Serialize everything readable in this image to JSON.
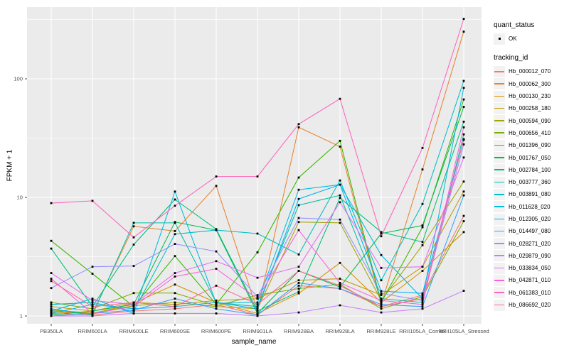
{
  "chart_data": {
    "type": "line",
    "title": "",
    "xlabel": "sample_name",
    "ylabel": "FPKM + 1",
    "y_scale": "log10",
    "y_ticks": [
      1,
      10,
      100
    ],
    "y_minor_ticks": [
      3.16,
      31.6,
      316
    ],
    "ylim": [
      0.95,
      400
    ],
    "grid": true,
    "legend_position": "right",
    "marker": "small-black-square",
    "panel_background": "#EBEBEB",
    "gridline_color": "#FFFFFF",
    "axis_text_color": "#4D4D4D",
    "point_color": "#000000",
    "categories": [
      "PB350LA",
      "RRIM600LA",
      "RRIM600LE",
      "RRIM600SE",
      "RRIM600PE",
      "RRIM901LA",
      "RRIM928BA",
      "RRIM928LA",
      "RRIM928LE",
      "RRII105LA_Control",
      "RRII105LA_Stressed"
    ],
    "legend": {
      "quant_status_title": "quant_status",
      "quant_status_items": [
        "OK"
      ],
      "tracking_id_title": "tracking_id"
    },
    "series": [
      {
        "name": "Hb_000012_070",
        "color": "#F8766D",
        "values": [
          1.05,
          1.02,
          1.1,
          1.15,
          1.25,
          1.02,
          1.8,
          1.7,
          1.2,
          1.5,
          6.98
        ]
      },
      {
        "name": "Hb_000062_300",
        "color": "#EA8331",
        "values": [
          1.1,
          1.05,
          5.7,
          5.2,
          12.5,
          1.1,
          39.0,
          26.8,
          1.25,
          17.2,
          250
        ]
      },
      {
        "name": "Hb_000130_230",
        "color": "#D89000",
        "values": [
          1.08,
          1.04,
          1.28,
          1.84,
          1.3,
          1.05,
          1.55,
          2.8,
          1.3,
          2.4,
          5.1
        ]
      },
      {
        "name": "Hb_000258_180",
        "color": "#C09B00",
        "values": [
          1.2,
          1.1,
          1.3,
          1.25,
          1.35,
          1.4,
          2.0,
          2.06,
          1.5,
          2.6,
          11.2
        ]
      },
      {
        "name": "Hb_000594_090",
        "color": "#A3A500",
        "values": [
          1.12,
          1.06,
          1.22,
          1.3,
          1.2,
          1.15,
          6.2,
          6.1,
          1.35,
          3.95,
          13.6
        ]
      },
      {
        "name": "Hb_000656_410",
        "color": "#7CAE00",
        "values": [
          1.3,
          1.15,
          1.56,
          1.56,
          1.22,
          1.5,
          1.7,
          1.85,
          1.15,
          1.45,
          6.3
        ]
      },
      {
        "name": "Hb_001396_090",
        "color": "#39B600",
        "values": [
          4.3,
          2.27,
          1.2,
          3.2,
          1.25,
          3.44,
          14.7,
          30.0,
          1.3,
          5.6,
          67.0
        ]
      },
      {
        "name": "Hb_001767_050",
        "color": "#00BB4E",
        "values": [
          1.02,
          1.1,
          1.25,
          6.2,
          5.3,
          1.05,
          2.4,
          1.75,
          4.95,
          5.8,
          58.0
        ]
      },
      {
        "name": "Hb_002784_100",
        "color": "#00BF7D",
        "values": [
          3.7,
          1.2,
          4.0,
          9.6,
          5.4,
          1.1,
          1.6,
          9.9,
          5.1,
          4.2,
          43.5
        ]
      },
      {
        "name": "Hb_003777_360",
        "color": "#00C1A3",
        "values": [
          1.15,
          1.02,
          6.1,
          6.1,
          1.3,
          1.2,
          8.6,
          10.4,
          1.4,
          1.3,
          34.0
        ]
      },
      {
        "name": "Hb_003891_080",
        "color": "#00BFC4",
        "values": [
          1.25,
          1.3,
          1.1,
          4.9,
          5.3,
          4.95,
          3.3,
          13.9,
          2.0,
          8.8,
          96.0
        ]
      },
      {
        "name": "Hb_011628_020",
        "color": "#00BAE0",
        "values": [
          1.1,
          1.4,
          1.05,
          11.2,
          1.28,
          1.3,
          11.6,
          12.8,
          3.26,
          1.4,
          84.0
        ]
      },
      {
        "name": "Hb_012305_020",
        "color": "#00B0F6",
        "values": [
          1.05,
          1.25,
          1.15,
          1.2,
          1.3,
          1.15,
          9.7,
          12.8,
          1.62,
          1.55,
          30.5
        ]
      },
      {
        "name": "Hb_014497_080",
        "color": "#35A2FF",
        "values": [
          1.0,
          1.05,
          1.12,
          1.4,
          1.15,
          1.02,
          1.9,
          1.7,
          1.25,
          1.2,
          10.4
        ]
      },
      {
        "name": "Hb_028271_020",
        "color": "#9590FF",
        "values": [
          1.72,
          2.6,
          2.64,
          4.05,
          3.5,
          1.45,
          6.7,
          6.5,
          1.55,
          1.35,
          28.0
        ]
      },
      {
        "name": "Hb_029879_090",
        "color": "#C77CFF",
        "values": [
          1.0,
          1.0,
          1.05,
          1.05,
          1.05,
          1.0,
          1.07,
          1.23,
          1.07,
          1.15,
          1.63
        ]
      },
      {
        "name": "Hb_033834_050",
        "color": "#E76BF3",
        "values": [
          2.3,
          1.35,
          1.25,
          2.3,
          2.9,
          2.1,
          2.6,
          9.1,
          2.54,
          2.6,
          21.7
        ]
      },
      {
        "name": "Hb_042871_010",
        "color": "#FA62DB",
        "values": [
          2.06,
          1.05,
          1.2,
          2.15,
          2.5,
          1.4,
          5.3,
          1.9,
          1.35,
          1.25,
          39.0
        ]
      },
      {
        "name": "Hb_061383_010",
        "color": "#FF62BC",
        "values": [
          8.95,
          9.35,
          4.6,
          8.5,
          15.0,
          15.0,
          41.5,
          67.8,
          4.7,
          26.1,
          320
        ]
      },
      {
        "name": "Hb_086692_020",
        "color": "#FF6A98",
        "values": [
          1.97,
          1.2,
          1.3,
          1.2,
          1.8,
          1.25,
          2.4,
          1.8,
          1.2,
          1.4,
          31.0
        ]
      }
    ]
  }
}
